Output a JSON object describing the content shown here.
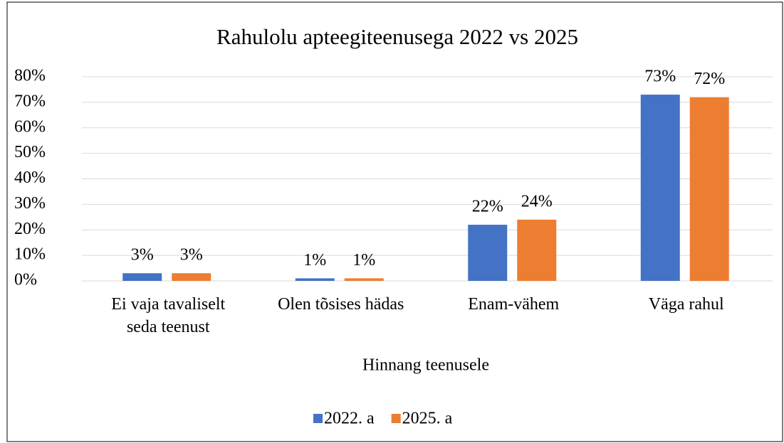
{
  "chart_data": {
    "type": "bar",
    "title": "Rahulolu apteegiteenusega 2022 vs 2025",
    "x_label": "Hinnang teenusele",
    "categories": [
      "Ei vaja tavaliselt seda teenust",
      "Olen tõsises hädas",
      "Enam-vähem",
      "Väga rahul"
    ],
    "series": [
      {
        "name": "2022. a",
        "color": "#4472c4",
        "values": [
          3,
          1,
          22,
          73
        ],
        "value_labels": [
          "3%",
          "1%",
          "22%",
          "73%"
        ]
      },
      {
        "name": "2025. a",
        "color": "#ed7d31",
        "values": [
          3,
          1,
          24,
          72
        ],
        "value_labels": [
          "3%",
          "1%",
          "24%",
          "72%"
        ]
      }
    ],
    "ylim": [
      0,
      80
    ],
    "yticks": [
      {
        "value": 0,
        "label": "0%"
      },
      {
        "value": 10,
        "label": "10%"
      },
      {
        "value": 20,
        "label": "20%"
      },
      {
        "value": 30,
        "label": "30%"
      },
      {
        "value": 40,
        "label": "40%"
      },
      {
        "value": 50,
        "label": "50%"
      },
      {
        "value": 60,
        "label": "60%"
      },
      {
        "value": 70,
        "label": "70%"
      },
      {
        "value": 80,
        "label": "80%"
      }
    ],
    "grid": true,
    "legend": "bottom"
  }
}
